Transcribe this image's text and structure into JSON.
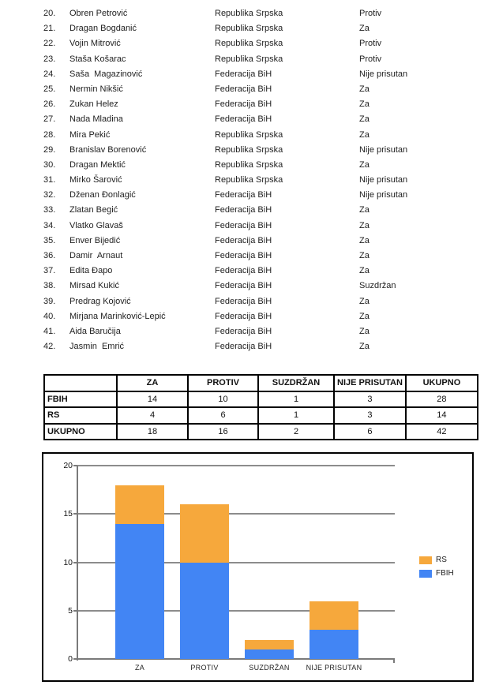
{
  "roster": {
    "rows": [
      {
        "num": "20.",
        "name": "Obren Petrović",
        "entity": "Republika Srpska",
        "vote": "Protiv"
      },
      {
        "num": "21.",
        "name": "Dragan Bogdanić",
        "entity": "Republika Srpska",
        "vote": "Za"
      },
      {
        "num": "22.",
        "name": "Vojin Mitrović",
        "entity": "Republika Srpska",
        "vote": "Protiv"
      },
      {
        "num": "23.",
        "name": "Staša Košarac",
        "entity": "Republika Srpska",
        "vote": "Protiv"
      },
      {
        "num": "24.",
        "name": "Saša  Magazinović",
        "entity": "Federacija BiH",
        "vote": "Nije prisutan"
      },
      {
        "num": "25.",
        "name": "Nermin Nikšić",
        "entity": "Federacija BiH",
        "vote": "Za"
      },
      {
        "num": "26.",
        "name": "Zukan Helez",
        "entity": "Federacija BiH",
        "vote": "Za"
      },
      {
        "num": "27.",
        "name": "Nada Mladina",
        "entity": "Federacija BiH",
        "vote": "Za"
      },
      {
        "num": "28.",
        "name": "Mira Pekić",
        "entity": "Republika Srpska",
        "vote": "Za"
      },
      {
        "num": "29.",
        "name": "Branislav Borenović",
        "entity": "Republika Srpska",
        "vote": "Nije prisutan"
      },
      {
        "num": "30.",
        "name": "Dragan Mektić",
        "entity": "Republika Srpska",
        "vote": "Za"
      },
      {
        "num": "31.",
        "name": "Mirko Šarović",
        "entity": "Republika Srpska",
        "vote": "Nije prisutan"
      },
      {
        "num": "32.",
        "name": "Dženan Đonlagić",
        "entity": "Federacija BiH",
        "vote": "Nije prisutan"
      },
      {
        "num": "33.",
        "name": "Zlatan Begić",
        "entity": "Federacija BiH",
        "vote": "Za"
      },
      {
        "num": "34.",
        "name": "Vlatko Glavaš",
        "entity": "Federacija BiH",
        "vote": "Za"
      },
      {
        "num": "35.",
        "name": "Enver Bijedić",
        "entity": "Federacija BiH",
        "vote": "Za"
      },
      {
        "num": "36.",
        "name": "Damir  Arnaut",
        "entity": "Federacija BiH",
        "vote": "Za"
      },
      {
        "num": "37.",
        "name": "Edita Đapo",
        "entity": "Federacija BiH",
        "vote": "Za"
      },
      {
        "num": "38.",
        "name": "Mirsad Kukić",
        "entity": "Federacija BiH",
        "vote": "Suzdržan"
      },
      {
        "num": "39.",
        "name": "Predrag Kojović",
        "entity": "Federacija BiH",
        "vote": "Za"
      },
      {
        "num": "40.",
        "name": "Mirjana Marinković-Lepić",
        "entity": "Federacija BiH",
        "vote": "Za"
      },
      {
        "num": "41.",
        "name": "Aida Baručija",
        "entity": "Federacija BiH",
        "vote": "Za"
      },
      {
        "num": "42.",
        "name": "Jasmin  Emrić",
        "entity": "Federacija BiH",
        "vote": "Za"
      }
    ]
  },
  "summary_table": {
    "columns": [
      "",
      "ZA",
      "PROTIV",
      "SUZDRŽAN",
      "NIJE PRISUTAN",
      "UKUPNO"
    ],
    "rows": [
      {
        "label": "FBIH",
        "values": [
          "14",
          "10",
          "1",
          "3",
          "28"
        ]
      },
      {
        "label": "RS",
        "values": [
          "4",
          "6",
          "1",
          "3",
          "14"
        ]
      },
      {
        "label": "UKUPNO",
        "values": [
          "18",
          "16",
          "2",
          "6",
          "42"
        ]
      }
    ]
  },
  "chart_data": {
    "type": "bar",
    "stacked": true,
    "title": "",
    "xlabel": "",
    "ylabel": "",
    "categories": [
      "ZA",
      "PROTIV",
      "SUZDRŽAN",
      "NIJE PRISUTAN"
    ],
    "series": [
      {
        "name": "FBIH",
        "values": [
          14,
          10,
          1,
          3
        ],
        "color": "#4285F4"
      },
      {
        "name": "RS",
        "values": [
          4,
          6,
          1,
          3
        ],
        "color": "#F6A83C"
      }
    ],
    "totals": [
      18,
      16,
      2,
      6
    ],
    "ylim": [
      0,
      20
    ],
    "yticks": [
      0,
      5,
      10,
      15,
      20
    ],
    "grid": true,
    "legend": {
      "position": "right",
      "order": [
        "RS",
        "FBIH"
      ]
    }
  }
}
